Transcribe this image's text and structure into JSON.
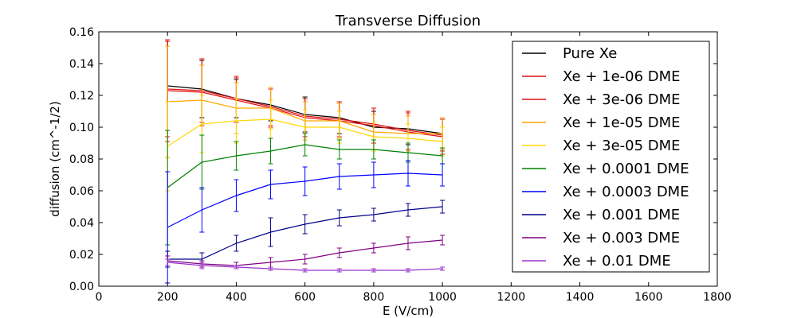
{
  "chart_data": {
    "type": "line",
    "title": "Transverse Diffusion",
    "xlabel": "E (V/cm)",
    "ylabel": "diffusion (cm^-1/2)",
    "xlim": [
      0,
      1800
    ],
    "ylim": [
      0,
      0.16
    ],
    "xticks": [
      "0",
      "200",
      "400",
      "600",
      "800",
      "1000",
      "1200",
      "1400",
      "1600",
      "1800"
    ],
    "yticks": [
      "0.00",
      "0.02",
      "0.04",
      "0.06",
      "0.08",
      "0.10",
      "0.12",
      "0.14",
      "0.16"
    ],
    "grid": false,
    "legend_position": "top-right",
    "x": [
      200,
      300,
      400,
      500,
      600,
      700,
      800,
      900,
      1000
    ],
    "series": [
      {
        "name": "Pure Xe",
        "color": "#000000",
        "values": [
          0.126,
          0.124,
          0.118,
          0.114,
          0.108,
          0.106,
          0.1,
          0.099,
          0.096
        ],
        "errors": [
          0.028,
          0.018,
          0.012,
          0.01,
          0.011,
          0.01,
          0.01,
          0.01,
          0.01
        ]
      },
      {
        "name": "Xe + 1e-06 DME",
        "color": "#e01010",
        "values": [
          0.124,
          0.123,
          0.118,
          0.113,
          0.107,
          0.105,
          0.102,
          0.098,
          0.095
        ],
        "errors": [
          0.03,
          0.02,
          0.014,
          0.012,
          0.011,
          0.011,
          0.01,
          0.012,
          0.01
        ]
      },
      {
        "name": "Xe + 3e-06 DME",
        "color": "#e01010",
        "values": [
          0.123,
          0.122,
          0.117,
          0.112,
          0.106,
          0.104,
          0.101,
          0.097,
          0.094
        ],
        "errors": [
          0.032,
          0.021,
          0.014,
          0.012,
          0.012,
          0.011,
          0.011,
          0.012,
          0.011
        ]
      },
      {
        "name": "Xe + 1e-05 DME",
        "color": "#ffa500",
        "values": [
          0.116,
          0.117,
          0.112,
          0.112,
          0.104,
          0.104,
          0.097,
          0.096,
          0.096
        ],
        "errors": [
          0.035,
          0.022,
          0.016,
          0.013,
          0.012,
          0.011,
          0.011,
          0.011,
          0.01
        ]
      },
      {
        "name": "Xe + 3e-05 DME",
        "color": "#ffd700",
        "values": [
          0.088,
          0.102,
          0.104,
          0.105,
          0.1,
          0.1,
          0.094,
          0.093,
          0.091
        ],
        "errors": [
          0.028,
          0.018,
          0.014,
          0.012,
          0.011,
          0.01,
          0.009,
          0.009,
          0.009
        ]
      },
      {
        "name": "Xe + 0.0001 DME",
        "color": "#008000",
        "values": [
          0.062,
          0.078,
          0.082,
          0.085,
          0.089,
          0.086,
          0.086,
          0.084,
          0.082
        ],
        "errors": [
          0.036,
          0.017,
          0.009,
          0.008,
          0.007,
          0.006,
          0.006,
          0.006,
          0.005
        ]
      },
      {
        "name": "Xe + 0.0003 DME",
        "color": "#0000ff",
        "values": [
          0.037,
          0.048,
          0.057,
          0.064,
          0.066,
          0.069,
          0.07,
          0.071,
          0.07
        ],
        "errors": [
          0.035,
          0.014,
          0.01,
          0.009,
          0.009,
          0.008,
          0.008,
          0.008,
          0.007
        ]
      },
      {
        "name": "Xe + 0.001 DME",
        "color": "#00008b",
        "values": [
          0.017,
          0.017,
          0.027,
          0.034,
          0.039,
          0.043,
          0.045,
          0.048,
          0.05
        ],
        "errors": [
          0.005,
          0.004,
          0.005,
          0.009,
          0.006,
          0.005,
          0.004,
          0.004,
          0.004
        ]
      },
      {
        "name": "Xe + 0.003 DME",
        "color": "#800080",
        "values": [
          0.016,
          0.014,
          0.013,
          0.015,
          0.017,
          0.021,
          0.024,
          0.027,
          0.029
        ],
        "errors": [
          0.003,
          0.002,
          0.002,
          0.003,
          0.003,
          0.003,
          0.003,
          0.004,
          0.003
        ]
      },
      {
        "name": "Xe + 0.01 DME",
        "color": "#9932cc",
        "values": [
          0.015,
          0.013,
          0.012,
          0.011,
          0.01,
          0.01,
          0.01,
          0.01,
          0.011
        ],
        "errors": [
          0.002,
          0.002,
          0.001,
          0.001,
          0.001,
          0.001,
          0.001,
          0.001,
          0.001
        ]
      }
    ]
  }
}
